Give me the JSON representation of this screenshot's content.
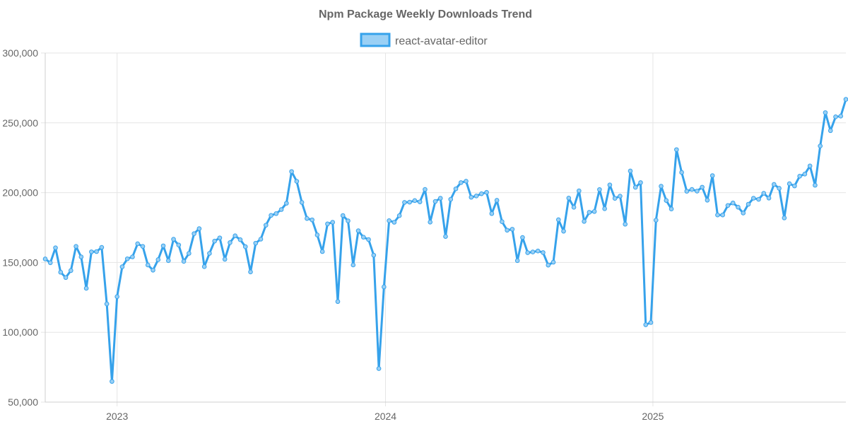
{
  "chart_data": {
    "type": "line",
    "title": "Npm Package Weekly Downloads Trend",
    "xlabel": "",
    "ylabel": "",
    "ylim": [
      50000,
      300000
    ],
    "y_ticks": [
      "50,000",
      "100,000",
      "150,000",
      "200,000",
      "250,000",
      "300,000"
    ],
    "x_ticks": [
      "2023",
      "2024",
      "2025"
    ],
    "legend_position": "top",
    "grid": true,
    "colors": {
      "line": "#36a2eb",
      "fill": "#9ad0f5"
    },
    "series": [
      {
        "name": "react-avatar-editor",
        "values": [
          152500,
          149800,
          160500,
          143000,
          139200,
          144200,
          161500,
          154000,
          131500,
          157600,
          157800,
          160800,
          120300,
          64800,
          125500,
          146900,
          152600,
          154000,
          163400,
          161500,
          148200,
          144500,
          152000,
          161900,
          151300,
          166600,
          162500,
          150800,
          156500,
          170600,
          174200,
          147000,
          156500,
          165300,
          167600,
          152300,
          164200,
          169100,
          166300,
          161300,
          143200,
          163800,
          166700,
          176700,
          183700,
          185000,
          187900,
          192400,
          215100,
          208100,
          193000,
          181500,
          180500,
          169700,
          157800,
          177600,
          178800,
          122000,
          183600,
          179800,
          148200,
          172700,
          168100,
          166400,
          155200,
          74000,
          132500,
          179900,
          178800,
          183500,
          193000,
          193200,
          194300,
          193400,
          202300,
          178900,
          193700,
          196000,
          168600,
          195200,
          202700,
          207200,
          208200,
          196700,
          197600,
          199200,
          200200,
          185000,
          194500,
          179200,
          173100,
          173800,
          151300,
          167900,
          157000,
          157500,
          158200,
          157100,
          148100,
          150200,
          180600,
          172400,
          196100,
          189500,
          201300,
          179400,
          185900,
          186500,
          202200,
          188500,
          205500,
          195900,
          197500,
          177400,
          215500,
          203800,
          207200,
          105400,
          107000,
          180300,
          204600,
          194400,
          188300,
          230800,
          214500,
          201000,
          202300,
          201100,
          203900,
          194600,
          212200,
          184000,
          184000,
          190800,
          192600,
          189600,
          185400,
          191700,
          196000,
          195200,
          199500,
          196100,
          205900,
          203100,
          181900,
          206400,
          204800,
          211800,
          213300,
          219100,
          205300,
          233400,
          257300,
          244400,
          254300,
          254800,
          266800
        ]
      }
    ]
  }
}
